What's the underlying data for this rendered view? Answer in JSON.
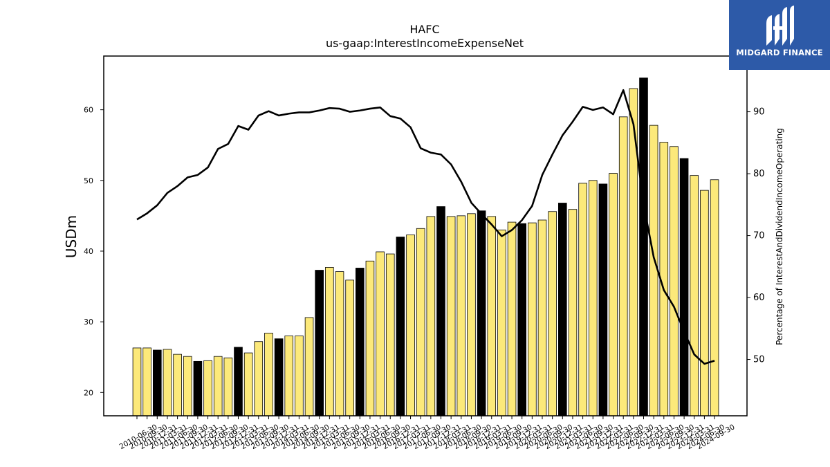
{
  "chart_data": {
    "type": "bar",
    "title": "HAFC",
    "subtitle": "us-gaap:InterestIncomeExpenseNet",
    "ylabel": "USDm",
    "y2label": "Percentage of InterestAndDividendIncomeOperating",
    "ylim": [
      16.7,
      67.6
    ],
    "y2lim": [
      40.9,
      99.0
    ],
    "yticks": [
      20,
      30,
      40,
      50,
      60
    ],
    "y2ticks": [
      50,
      60,
      70,
      80,
      90
    ],
    "bar_fill": "#fce97a",
    "bar_fill_alt": "#000000",
    "line_color": "#000000",
    "categories": [
      "2010-06-30",
      "2010-09-30",
      "2010-12-31",
      "2011-03-31",
      "2011-06-30",
      "2011-09-30",
      "2011-12-31",
      "2012-03-31",
      "2012-06-30",
      "2012-09-30",
      "2012-12-31",
      "2013-03-31",
      "2013-06-30",
      "2013-09-30",
      "2013-12-31",
      "2014-03-31",
      "2014-06-30",
      "2014-09-30",
      "2014-12-31",
      "2015-03-31",
      "2015-06-30",
      "2015-09-30",
      "2015-12-31",
      "2016-03-31",
      "2016-06-30",
      "2016-09-30",
      "2016-12-31",
      "2017-03-31",
      "2017-06-30",
      "2017-09-30",
      "2017-12-31",
      "2018-03-31",
      "2018-06-30",
      "2018-09-30",
      "2018-12-31",
      "2019-03-31",
      "2019-06-30",
      "2019-09-30",
      "2019-12-31",
      "2020-03-31",
      "2020-06-30",
      "2020-09-30",
      "2020-12-31",
      "2021-03-31",
      "2021-06-30",
      "2021-09-30",
      "2021-12-31",
      "2022-03-31",
      "2022-06-30",
      "2022-09-30",
      "2022-12-31",
      "2023-03-31",
      "2023-06-30",
      "2023-09-30",
      "2023-12-31",
      "2024-03-31",
      "2024-06-30",
      "2024-09-30"
    ],
    "values": [
      26.3,
      26.3,
      26.0,
      26.1,
      25.4,
      25.1,
      24.4,
      24.5,
      25.1,
      24.9,
      26.4,
      25.6,
      27.2,
      28.4,
      27.6,
      28.0,
      28.0,
      30.6,
      37.3,
      37.7,
      37.1,
      35.9,
      37.6,
      38.6,
      39.9,
      39.6,
      42.0,
      42.3,
      43.2,
      44.9,
      46.3,
      44.9,
      45.0,
      45.3,
      45.7,
      44.9,
      43.0,
      44.1,
      43.9,
      44.0,
      44.4,
      45.6,
      46.8,
      45.9,
      49.6,
      50.0,
      49.5,
      51.0,
      59.0,
      63.0,
      64.5,
      57.8,
      55.4,
      54.8,
      53.1,
      50.7,
      48.6,
      50.1
    ],
    "highlight": [
      false,
      false,
      true,
      false,
      false,
      false,
      true,
      false,
      false,
      false,
      true,
      false,
      false,
      false,
      true,
      false,
      false,
      false,
      true,
      false,
      false,
      false,
      true,
      false,
      false,
      false,
      true,
      false,
      false,
      false,
      true,
      false,
      false,
      false,
      true,
      false,
      false,
      false,
      true,
      false,
      false,
      false,
      true,
      false,
      false,
      false,
      true,
      false,
      false,
      false,
      true,
      false,
      false,
      false,
      true,
      false,
      false,
      false
    ],
    "line_values": [
      72.6,
      73.6,
      74.9,
      76.9,
      78.0,
      79.4,
      79.8,
      81.0,
      84.0,
      84.8,
      87.7,
      87.1,
      89.4,
      90.1,
      89.4,
      89.7,
      89.9,
      89.9,
      90.2,
      90.6,
      90.5,
      90.0,
      90.2,
      90.5,
      90.7,
      89.3,
      88.9,
      87.5,
      84.1,
      83.4,
      83.1,
      81.5,
      78.7,
      75.3,
      73.5,
      71.8,
      69.9,
      70.9,
      72.5,
      74.8,
      79.8,
      83.1,
      86.2,
      88.4,
      90.8,
      90.3,
      90.7,
      89.6,
      93.5,
      88.0,
      75.0,
      66.5,
      61.2,
      58.5,
      54.5,
      50.8,
      49.3,
      49.8
    ]
  },
  "logo": {
    "text": "MIDGARD FINANCE"
  }
}
